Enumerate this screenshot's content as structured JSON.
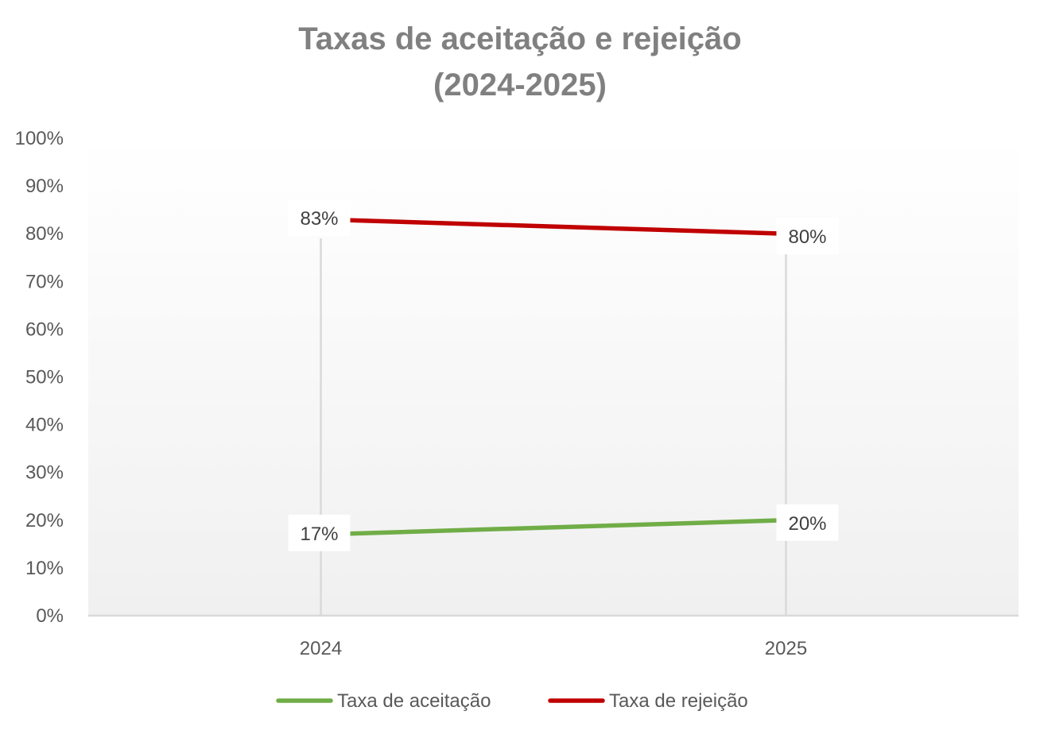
{
  "chart_data": {
    "type": "line",
    "title": "Taxas de aceitação e rejeição",
    "subtitle": "(2024-2025)",
    "categories": [
      "2024",
      "2025"
    ],
    "ylim": [
      0,
      1
    ],
    "y_ticks": [
      "0%",
      "10%",
      "20%",
      "30%",
      "40%",
      "50%",
      "60%",
      "70%",
      "80%",
      "90%",
      "100%"
    ],
    "grid": {
      "vertical": true,
      "horizontal": false
    },
    "legend_position": "bottom",
    "series": [
      {
        "name": "Taxa de aceitação",
        "values": [
          0.17,
          0.2
        ],
        "labels": [
          "17%",
          "20%"
        ],
        "color": "#70AD47"
      },
      {
        "name": "Taxa de rejeição",
        "values": [
          0.83,
          0.8
        ],
        "labels": [
          "83%",
          "80%"
        ],
        "color": "#C00000"
      }
    ]
  }
}
